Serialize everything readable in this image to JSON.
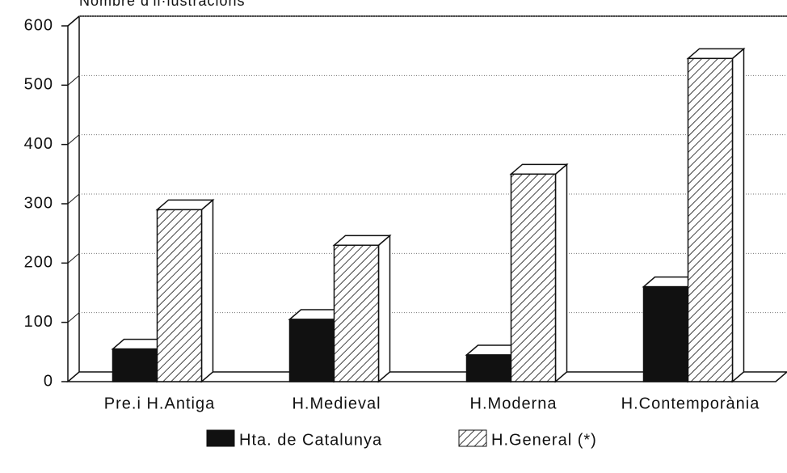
{
  "chart_data": {
    "type": "bar3d",
    "y_label": "Nombre d'il·lustracions",
    "categories": [
      "Pre.i H.Antiga",
      "H.Medieval",
      "H.Moderna",
      "H.Contemporània"
    ],
    "series": [
      {
        "name": "Hta. de Catalunya",
        "color": "#111111",
        "hatch": false,
        "values": [
          55,
          105,
          45,
          160
        ]
      },
      {
        "name": "H.General (*)",
        "color": "#ffffff",
        "hatch": true,
        "values": [
          290,
          230,
          350,
          545
        ]
      }
    ],
    "ylim": [
      0,
      600
    ],
    "yticks": [
      0,
      100,
      200,
      300,
      400,
      500,
      600
    ],
    "grid": true
  }
}
